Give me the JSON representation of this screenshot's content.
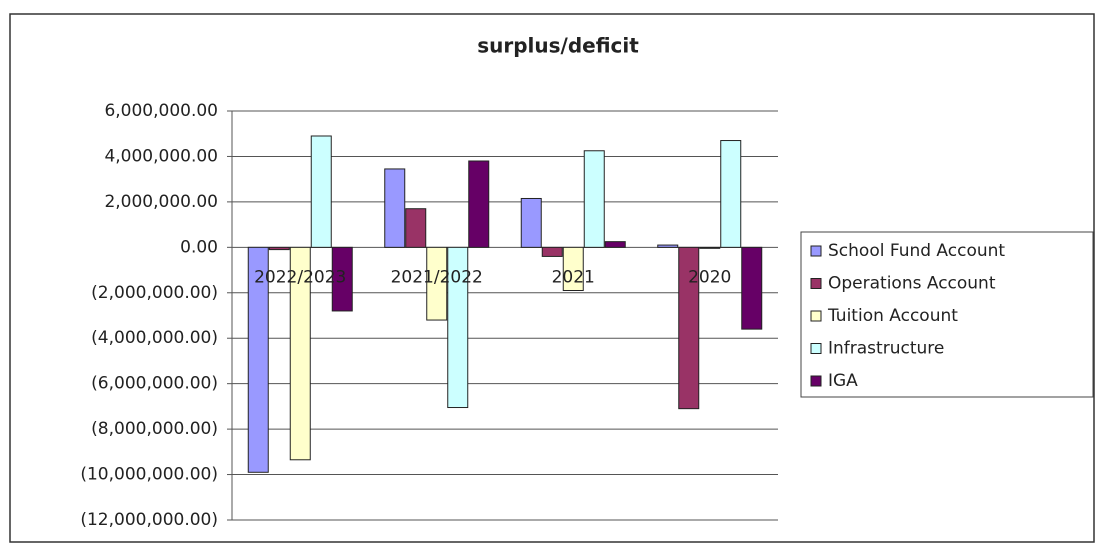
{
  "chart_data": {
    "type": "bar",
    "title": "surplus/deficit",
    "categories": [
      "2022/2023",
      "2021/2022",
      "2021",
      "2020"
    ],
    "series": [
      {
        "name": "School Fund Account",
        "color": "#9999ff",
        "values": [
          -9900000,
          3450000,
          2150000,
          100000
        ]
      },
      {
        "name": "Operations Account",
        "color": "#993366",
        "values": [
          -100000,
          1700000,
          -400000,
          -7100000
        ]
      },
      {
        "name": "Tuition Account",
        "color": "#ffffcc",
        "values": [
          -9350000,
          -3200000,
          -1900000,
          0
        ]
      },
      {
        "name": "Infrastructure",
        "color": "#ccffff",
        "values": [
          4900000,
          -7050000,
          4250000,
          4700000
        ]
      },
      {
        "name": "IGA",
        "color": "#660066",
        "values": [
          -2800000,
          3800000,
          250000,
          -3600000
        ]
      }
    ],
    "ylim": [
      -12000000,
      6000000
    ],
    "yticks": [
      {
        "value": 6000000,
        "label": "6,000,000.00"
      },
      {
        "value": 4000000,
        "label": "4,000,000.00"
      },
      {
        "value": 2000000,
        "label": "2,000,000.00"
      },
      {
        "value": 0,
        "label": "0.00"
      },
      {
        "value": -2000000,
        "label": "(2,000,000.00)"
      },
      {
        "value": -4000000,
        "label": "(4,000,000.00)"
      },
      {
        "value": -6000000,
        "label": "(6,000,000.00)"
      },
      {
        "value": -8000000,
        "label": "(8,000,000.00)"
      },
      {
        "value": -10000000,
        "label": "(10,000,000.00)"
      },
      {
        "value": -12000000,
        "label": "(12,000,000.00)"
      }
    ],
    "grid": true,
    "legend": "right"
  }
}
